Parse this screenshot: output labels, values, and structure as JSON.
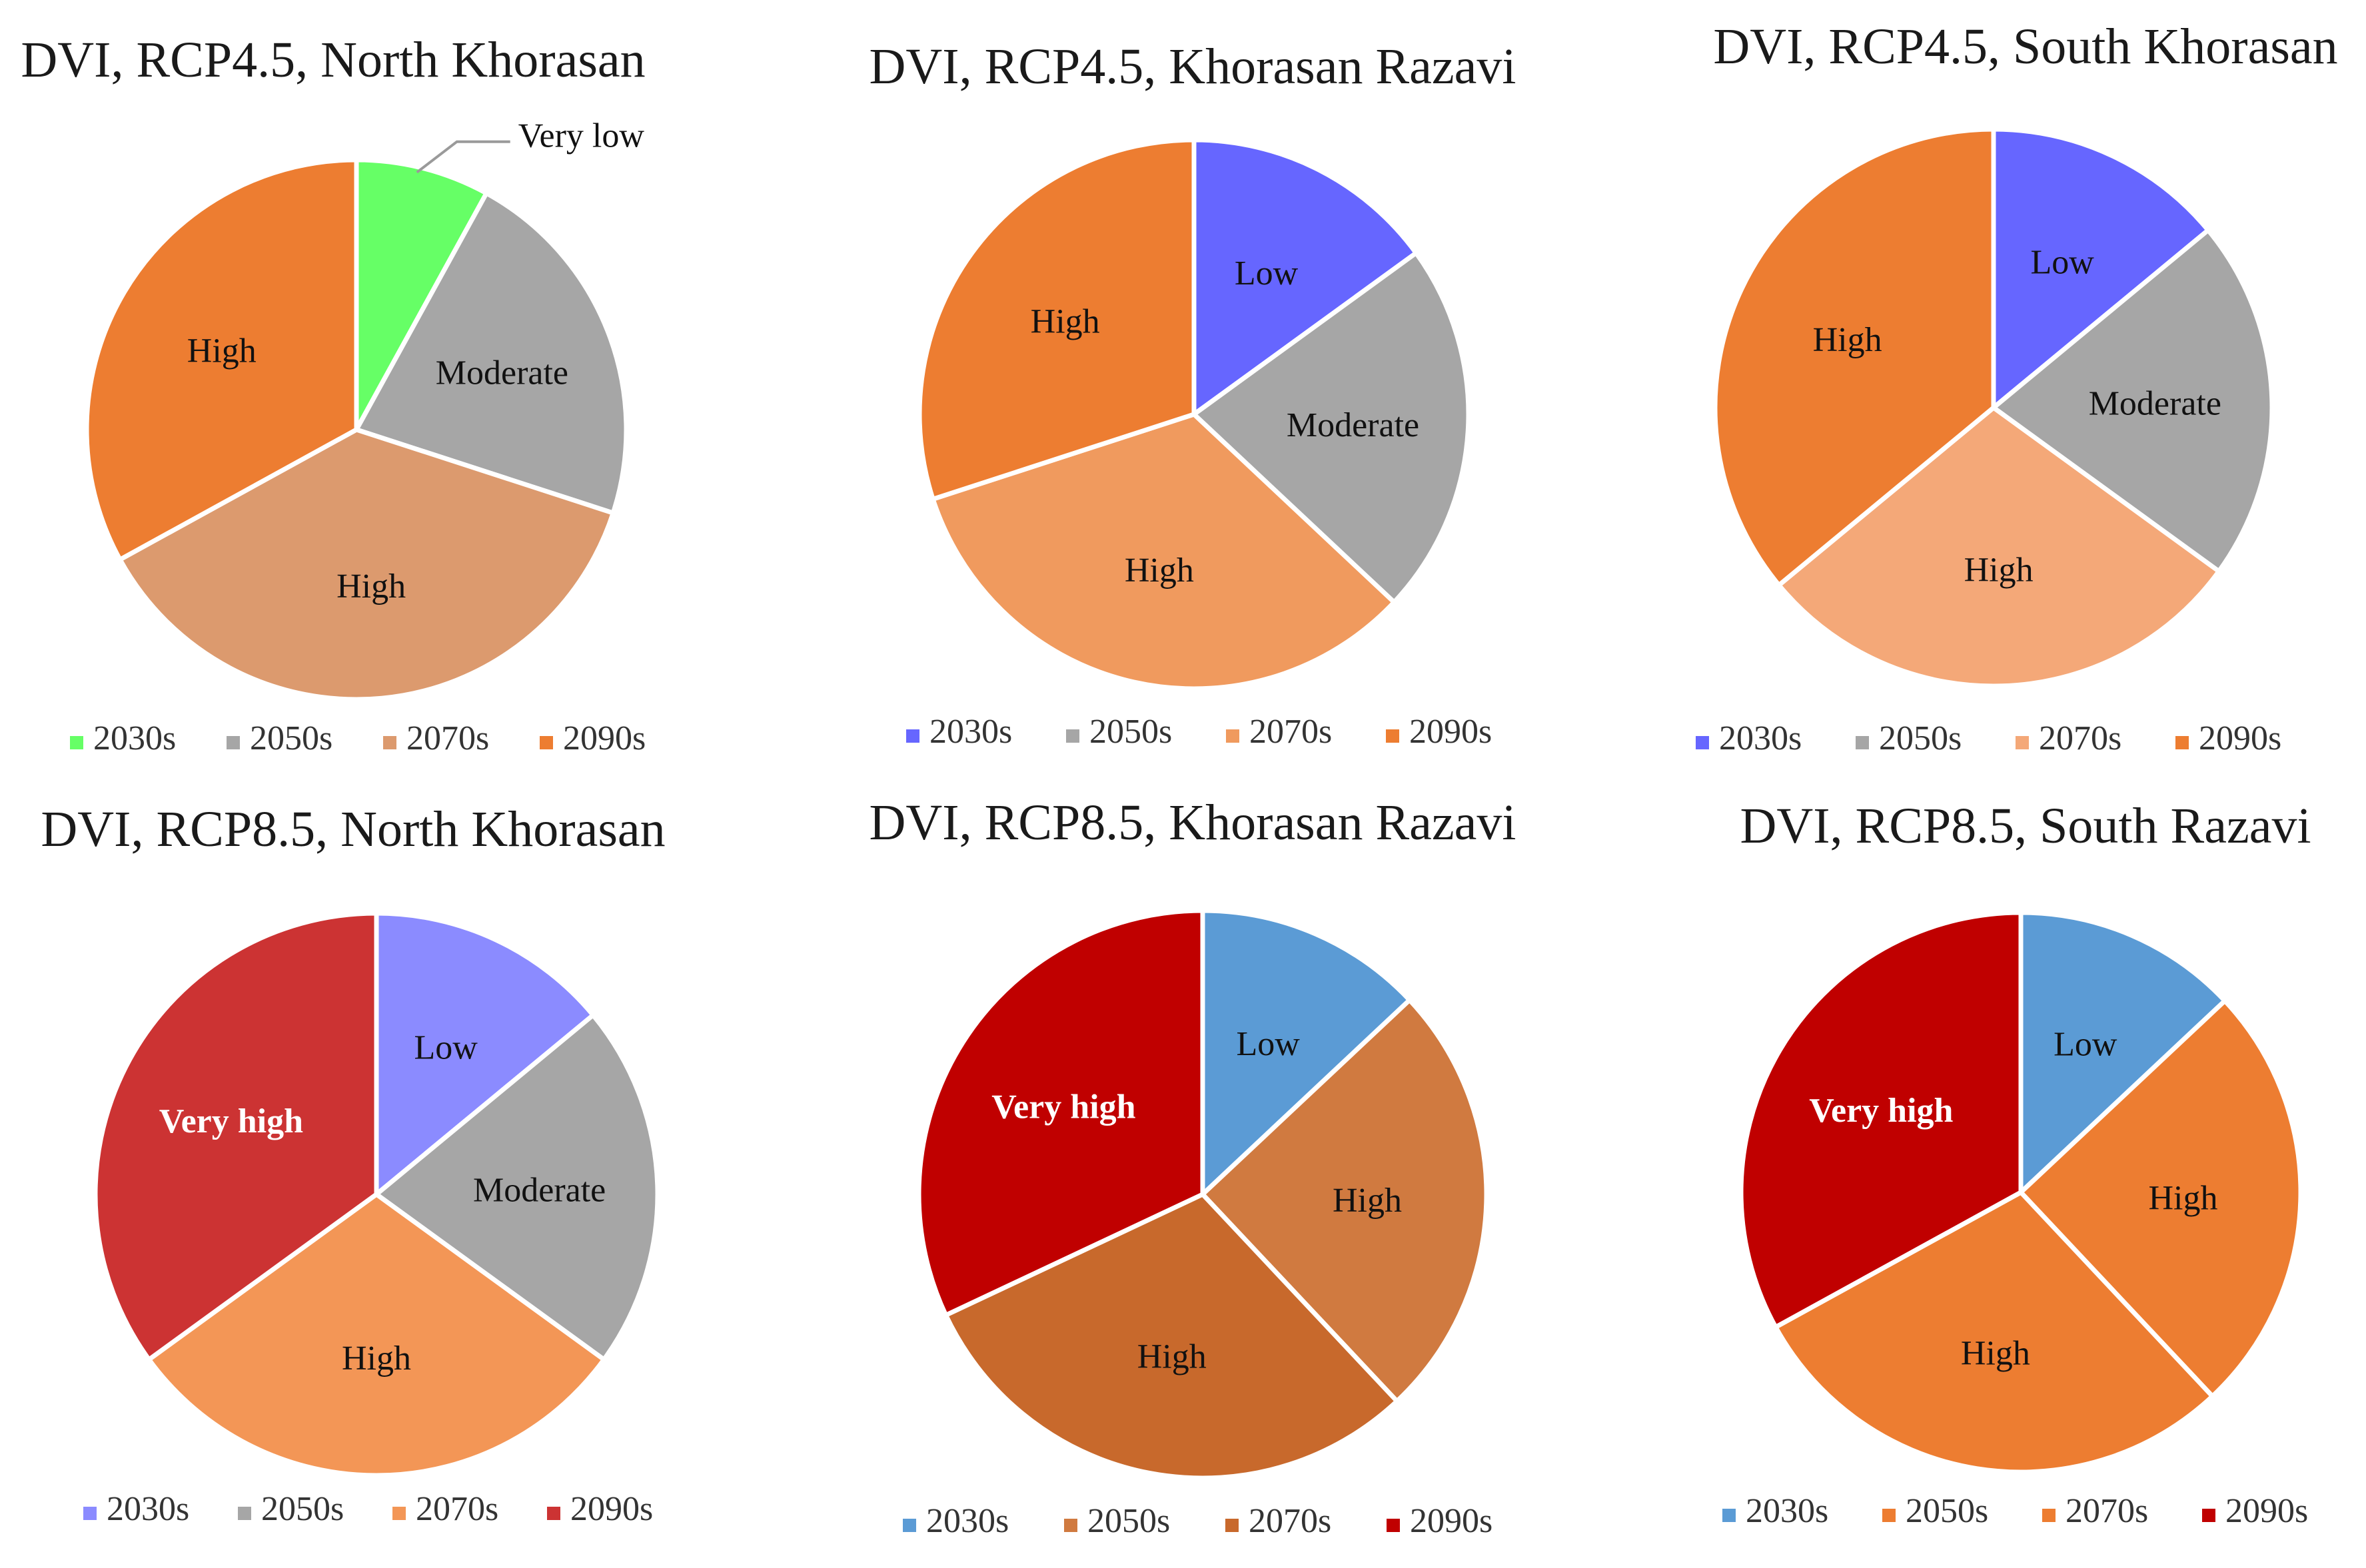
{
  "chart_data": [
    {
      "type": "pie",
      "title": "DVI, RCP4.5, North Khorasan",
      "categories": [
        "2030s",
        "2050s",
        "2070s",
        "2090s"
      ],
      "values": [
        8,
        22,
        37,
        33
      ],
      "slice_labels": [
        "Very low",
        "Moderate",
        "High",
        "High"
      ],
      "colors": [
        "#66ff66",
        "#a6a6a6",
        "#dc9a6e",
        "#ed7d31"
      ],
      "legend_position": "bottom"
    },
    {
      "type": "pie",
      "title": "DVI, RCP4.5, Khorasan Razavi",
      "categories": [
        "2030s",
        "2050s",
        "2070s",
        "2090s"
      ],
      "values": [
        15,
        22,
        33,
        30
      ],
      "slice_labels": [
        "Low",
        "Moderate",
        "High",
        "High"
      ],
      "colors": [
        "#6666ff",
        "#a6a6a6",
        "#f09a5e",
        "#ed7d31"
      ],
      "legend_position": "bottom"
    },
    {
      "type": "pie",
      "title": "DVI, RCP4.5, South Khorasan",
      "categories": [
        "2030s",
        "2050s",
        "2070s",
        "2090s"
      ],
      "values": [
        14,
        21,
        29,
        36
      ],
      "slice_labels": [
        "Low",
        "Moderate",
        "High",
        "High"
      ],
      "colors": [
        "#6666ff",
        "#a6a6a6",
        "#f4a878",
        "#ed7d31"
      ],
      "legend_position": "bottom"
    },
    {
      "type": "pie",
      "title": "DVI, RCP8.5, North Khorasan",
      "categories": [
        "2030s",
        "2050s",
        "2070s",
        "2090s"
      ],
      "values": [
        14,
        21,
        30,
        35
      ],
      "slice_labels": [
        "Low",
        "Moderate",
        "High",
        "Very high"
      ],
      "colors": [
        "#8b8bff",
        "#a6a6a6",
        "#f39656",
        "#cc3333"
      ],
      "legend_position": "bottom"
    },
    {
      "type": "pie",
      "title": "DVI, RCP8.5, Khorasan Razavi",
      "categories": [
        "2030s",
        "2050s",
        "2070s",
        "2090s"
      ],
      "values": [
        13,
        25,
        30,
        32
      ],
      "slice_labels": [
        "Low",
        "High",
        "High",
        "Very high"
      ],
      "colors": [
        "#5b9bd5",
        "#d07a40",
        "#c8692c",
        "#c00000"
      ],
      "legend_position": "bottom"
    },
    {
      "type": "pie",
      "title": "DVI, RCP8.5, South Razavi",
      "categories": [
        "2030s",
        "2050s",
        "2070s",
        "2090s"
      ],
      "values": [
        13,
        25,
        29,
        33
      ],
      "slice_labels": [
        "Low",
        "High",
        "High",
        "Very high"
      ],
      "colors": [
        "#5b9bd5",
        "#ed7d31",
        "#ed7d31",
        "#c00000"
      ],
      "legend_position": "bottom"
    }
  ]
}
